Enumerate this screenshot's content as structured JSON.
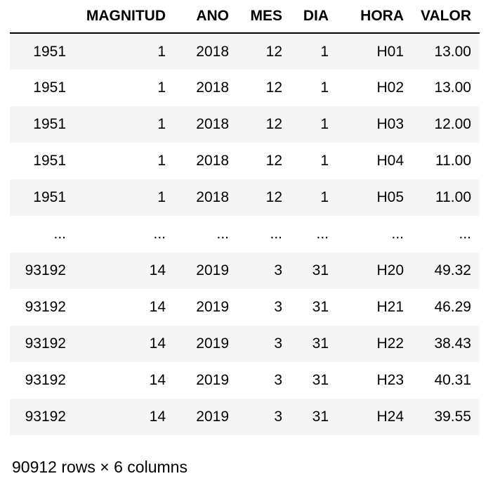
{
  "dataframe": {
    "columns": [
      "MAGNITUD",
      "ANO",
      "MES",
      "DIA",
      "HORA",
      "VALOR"
    ],
    "rows": [
      {
        "index": "1951",
        "cells": [
          "1",
          "2018",
          "12",
          "1",
          "H01",
          "13.00"
        ]
      },
      {
        "index": "1951",
        "cells": [
          "1",
          "2018",
          "12",
          "1",
          "H02",
          "13.00"
        ]
      },
      {
        "index": "1951",
        "cells": [
          "1",
          "2018",
          "12",
          "1",
          "H03",
          "12.00"
        ]
      },
      {
        "index": "1951",
        "cells": [
          "1",
          "2018",
          "12",
          "1",
          "H04",
          "11.00"
        ]
      },
      {
        "index": "1951",
        "cells": [
          "1",
          "2018",
          "12",
          "1",
          "H05",
          "11.00"
        ]
      },
      {
        "index": "...",
        "cells": [
          "...",
          "...",
          "...",
          "...",
          "...",
          "..."
        ]
      },
      {
        "index": "93192",
        "cells": [
          "14",
          "2019",
          "3",
          "31",
          "H20",
          "49.32"
        ]
      },
      {
        "index": "93192",
        "cells": [
          "14",
          "2019",
          "3",
          "31",
          "H21",
          "46.29"
        ]
      },
      {
        "index": "93192",
        "cells": [
          "14",
          "2019",
          "3",
          "31",
          "H22",
          "38.43"
        ]
      },
      {
        "index": "93192",
        "cells": [
          "14",
          "2019",
          "3",
          "31",
          "H23",
          "40.31"
        ]
      },
      {
        "index": "93192",
        "cells": [
          "14",
          "2019",
          "3",
          "31",
          "H24",
          "39.55"
        ]
      }
    ],
    "shape_note": "90912 rows × 6 columns"
  }
}
